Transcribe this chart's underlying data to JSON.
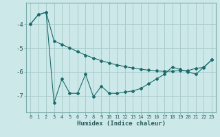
{
  "xlabel": "Humidex (Indice chaleur)",
  "x": [
    0,
    1,
    2,
    3,
    4,
    5,
    6,
    7,
    8,
    9,
    10,
    11,
    12,
    13,
    14,
    15,
    16,
    17,
    18,
    19,
    20,
    21,
    22,
    23
  ],
  "upper": [
    -4.0,
    -3.6,
    -3.5,
    -4.7,
    -4.85,
    -5.0,
    -5.15,
    -5.3,
    -5.42,
    -5.53,
    -5.63,
    -5.71,
    -5.78,
    -5.84,
    -5.89,
    -5.93,
    -5.96,
    -5.98,
    -5.97,
    -5.95,
    -5.95,
    -5.85,
    -5.82,
    -5.5
  ],
  "lower": [
    -4.0,
    -3.6,
    -3.5,
    -7.3,
    -6.3,
    -6.9,
    -6.9,
    -6.1,
    -7.05,
    -6.6,
    -6.9,
    -6.9,
    -6.85,
    -6.8,
    -6.7,
    -6.5,
    -6.3,
    -6.1,
    -5.8,
    -5.9,
    -6.0,
    -6.1,
    -5.8,
    -5.5
  ],
  "bg_color": "#cde8e8",
  "grid_color": "#a8cccc",
  "line_color": "#1a6b6b",
  "ylim": [
    -7.7,
    -3.1
  ],
  "yticks": [
    -7,
    -6,
    -5,
    -4
  ],
  "xlim": [
    -0.5,
    23.5
  ]
}
